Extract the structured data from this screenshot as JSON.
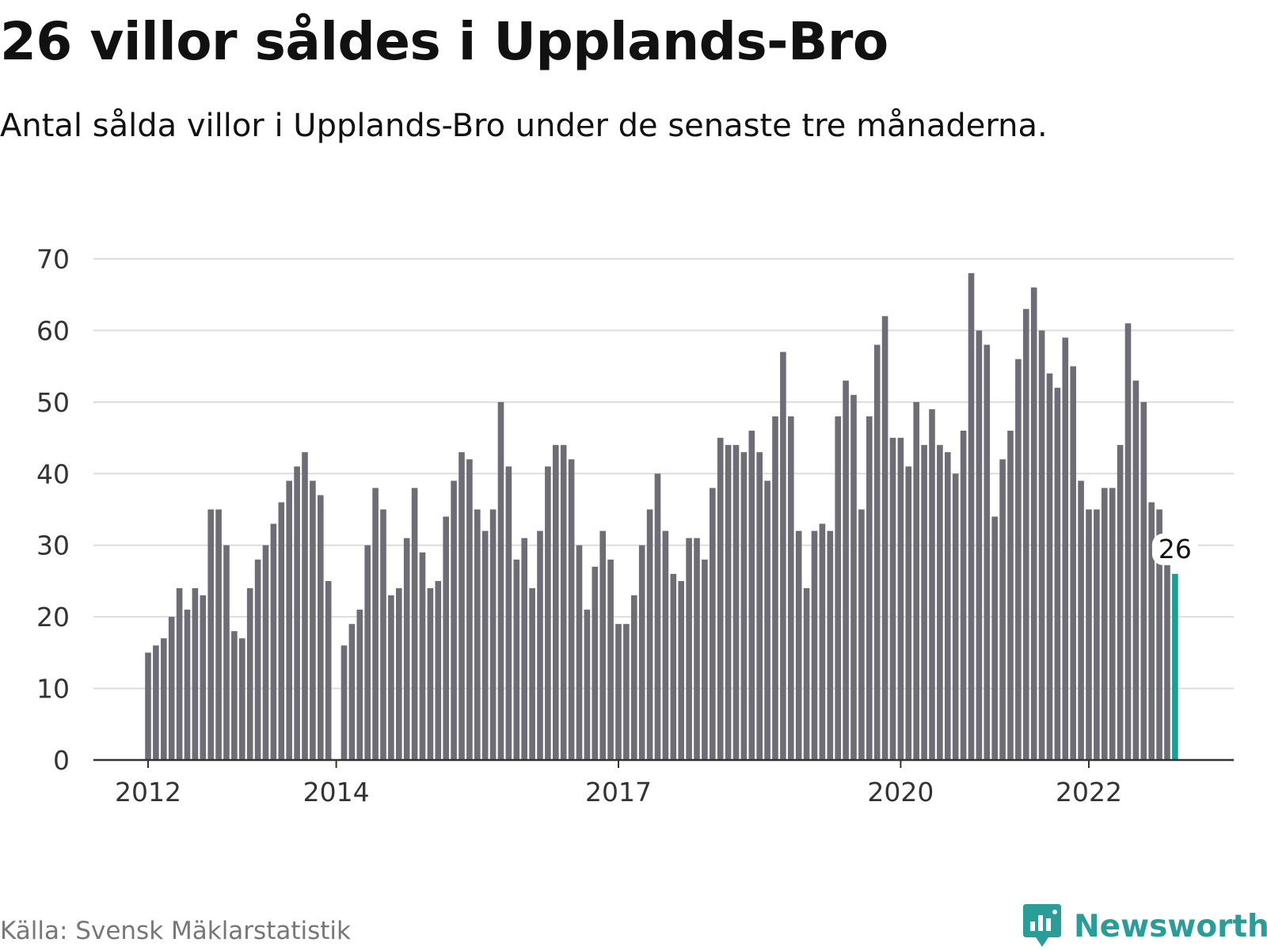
{
  "header": {
    "title": "26 villor såldes i Upplands-Bro",
    "subtitle": "Antal sålda villor i Upplands-Bro under de senaste tre månaderna."
  },
  "footer": {
    "source": "Källa: Svensk Mäklarstatistik",
    "brand": "Newsworthy"
  },
  "colors": {
    "bar": "#6e6d75",
    "highlight": "#1a9e96",
    "grid": "#dddddd",
    "axis": "#333333",
    "brand": "#2a9d98"
  },
  "chart_data": {
    "type": "bar",
    "title": "26 villor såldes i Upplands-Bro",
    "subtitle": "Antal sålda villor i Upplands-Bro under de senaste tre månaderna.",
    "xlabel": "",
    "ylabel": "",
    "ylim": [
      0,
      70
    ],
    "yticks": [
      0,
      10,
      20,
      30,
      40,
      50,
      60,
      70
    ],
    "x_tick_labels": [
      "2012",
      "2014",
      "2017",
      "2020",
      "2022"
    ],
    "grid": true,
    "values": [
      15,
      16,
      17,
      20,
      24,
      21,
      24,
      23,
      35,
      35,
      30,
      18,
      17,
      24,
      28,
      30,
      33,
      36,
      39,
      41,
      43,
      39,
      37,
      25,
      null,
      16,
      19,
      21,
      30,
      38,
      35,
      23,
      24,
      31,
      38,
      29,
      24,
      25,
      34,
      39,
      43,
      42,
      35,
      32,
      35,
      50,
      41,
      28,
      31,
      24,
      32,
      41,
      44,
      44,
      42,
      30,
      21,
      27,
      32,
      28,
      19,
      19,
      23,
      30,
      35,
      40,
      32,
      26,
      25,
      31,
      31,
      28,
      38,
      45,
      44,
      44,
      43,
      46,
      43,
      39,
      48,
      57,
      48,
      32,
      24,
      32,
      33,
      32,
      48,
      53,
      51,
      35,
      48,
      58,
      62,
      45,
      45,
      41,
      50,
      44,
      49,
      44,
      43,
      40,
      46,
      68,
      60,
      58,
      34,
      42,
      46,
      56,
      63,
      66,
      60,
      54,
      52,
      59,
      55,
      39,
      35,
      35,
      38,
      38,
      44,
      61,
      53,
      50,
      36,
      35,
      28,
      26
    ],
    "highlight_last": true,
    "highlight_label": "26"
  }
}
